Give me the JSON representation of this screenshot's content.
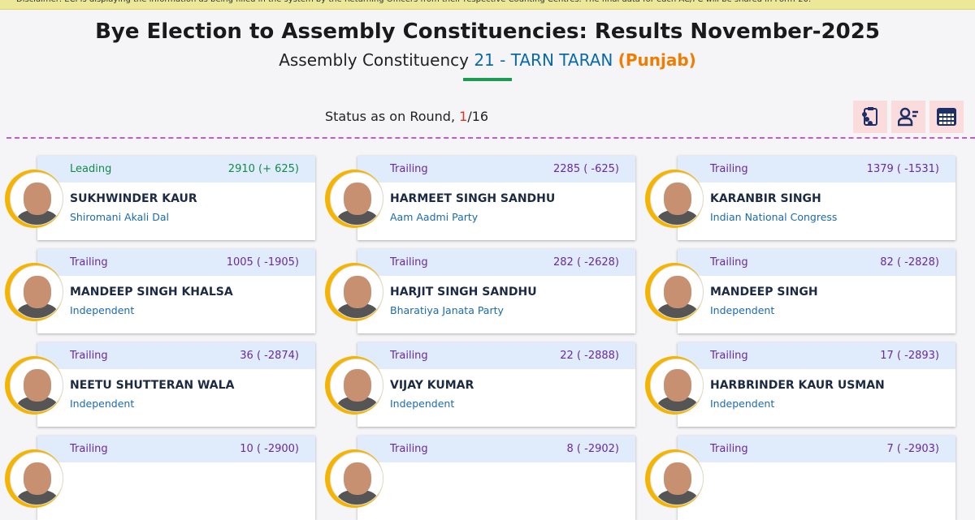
{
  "disclaimer": "Disclaimer: ECI is displaying the information as being filled in the system by the Returning Officers from their respective Counting Centres. The final data for each AC/PC will be shared in Form-20.",
  "title": "Bye Election to Assembly Constituencies: Results November-2025",
  "subtitle": {
    "prefix": "Assembly Constituency",
    "ac": "21 - TARN TARAN",
    "state": "(Punjab)"
  },
  "status": {
    "label": "Status as on Round,",
    "round": "1",
    "sep": "/",
    "total": "16"
  },
  "tools": [
    "form-report-icon",
    "candidate-list-icon",
    "table-view-icon"
  ],
  "candidates": [
    {
      "status": "Leading",
      "votes": "2910 (+ 625)",
      "name": "SUKHWINDER KAUR",
      "party": "Shiromani Akali Dal"
    },
    {
      "status": "Trailing",
      "votes": "2285 ( -625)",
      "name": "HARMEET SINGH SANDHU",
      "party": "Aam Aadmi Party"
    },
    {
      "status": "Trailing",
      "votes": "1379 ( -1531)",
      "name": "KARANBIR SINGH",
      "party": "Indian National Congress"
    },
    {
      "status": "Trailing",
      "votes": "1005 ( -1905)",
      "name": "MANDEEP SINGH KHALSA",
      "party": "Independent"
    },
    {
      "status": "Trailing",
      "votes": "282 ( -2628)",
      "name": "HARJIT SINGH SANDHU",
      "party": "Bharatiya Janata Party"
    },
    {
      "status": "Trailing",
      "votes": "82 ( -2828)",
      "name": "MANDEEP SINGH",
      "party": "Independent"
    },
    {
      "status": "Trailing",
      "votes": "36 ( -2874)",
      "name": "NEETU SHUTTERAN WALA",
      "party": "Independent"
    },
    {
      "status": "Trailing",
      "votes": "22 ( -2888)",
      "name": "VIJAY KUMAR",
      "party": "Independent"
    },
    {
      "status": "Trailing",
      "votes": "17 ( -2893)",
      "name": "HARBRINDER KAUR USMAN",
      "party": "Independent"
    },
    {
      "status": "Trailing",
      "votes": "10 ( -2900)",
      "name": "",
      "party": ""
    },
    {
      "status": "Trailing",
      "votes": "8 ( -2902)",
      "name": "",
      "party": ""
    },
    {
      "status": "Trailing",
      "votes": "7 ( -2903)",
      "name": "",
      "party": ""
    }
  ]
}
